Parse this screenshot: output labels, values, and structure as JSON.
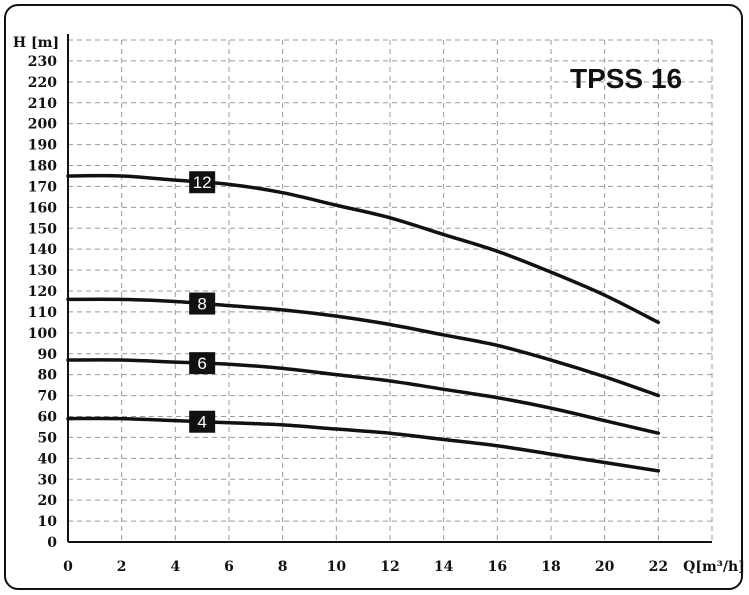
{
  "chart_data": {
    "type": "line",
    "title": "TPSS 16",
    "ylabel": "H [m]",
    "xlabel": "Q[m³/h]",
    "xlim": [
      0,
      24
    ],
    "ylim": [
      0,
      240
    ],
    "x_ticks": [
      "0",
      "2",
      "4",
      "6",
      "8",
      "10",
      "12",
      "14",
      "16",
      "18",
      "20",
      "22"
    ],
    "y_ticks": [
      "0",
      "10",
      "20",
      "30",
      "40",
      "50",
      "60",
      "70",
      "80",
      "90",
      "100",
      "110",
      "120",
      "130",
      "140",
      "150",
      "160",
      "170",
      "180",
      "190",
      "200",
      "210",
      "220",
      "230"
    ],
    "grid": true,
    "series": [
      {
        "name": "12",
        "x": [
          0,
          2,
          4,
          6,
          8,
          10,
          12,
          14,
          16,
          18,
          20,
          22
        ],
        "y": [
          175,
          175,
          173,
          171,
          167,
          161,
          155,
          147,
          139,
          129,
          118,
          105
        ]
      },
      {
        "name": "8",
        "x": [
          0,
          2,
          4,
          6,
          8,
          10,
          12,
          14,
          16,
          18,
          20,
          22
        ],
        "y": [
          116,
          116,
          115,
          113,
          111,
          108,
          104,
          99,
          94,
          87,
          79,
          70
        ]
      },
      {
        "name": "6",
        "x": [
          0,
          2,
          4,
          6,
          8,
          10,
          12,
          14,
          16,
          18,
          20,
          22
        ],
        "y": [
          87,
          87,
          86,
          85,
          83,
          80,
          77,
          73,
          69,
          64,
          58,
          52
        ]
      },
      {
        "name": "4",
        "x": [
          0,
          2,
          4,
          6,
          8,
          10,
          12,
          14,
          16,
          18,
          20,
          22
        ],
        "y": [
          59,
          59,
          58,
          57,
          56,
          54,
          52,
          49,
          46,
          42,
          38,
          34
        ]
      }
    ],
    "label_x": 5,
    "colors": {
      "curve": "#111111",
      "grid": "#9a9a9a",
      "badge": "#111111"
    }
  }
}
